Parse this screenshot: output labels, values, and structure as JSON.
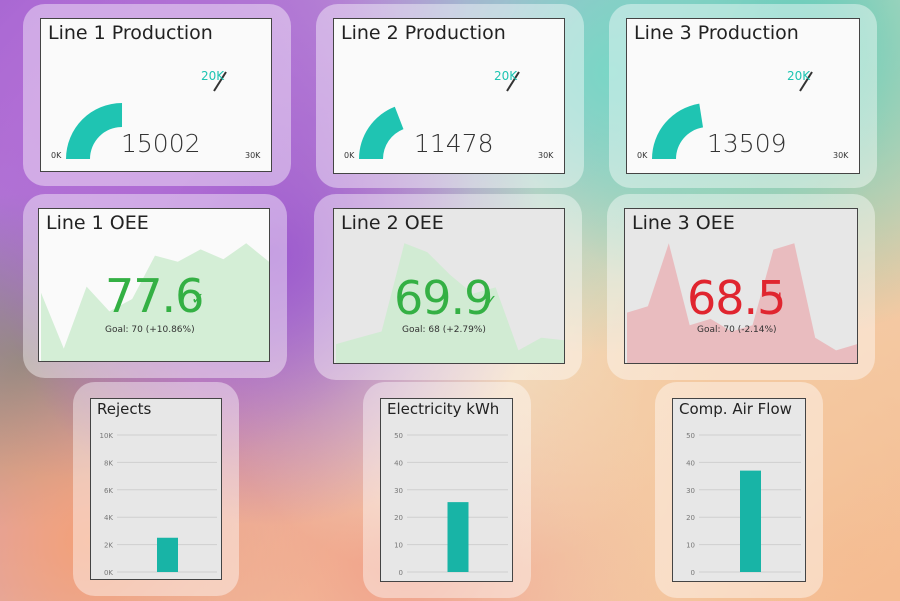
{
  "colors": {
    "teal": "#1fc4b2",
    "good": "#34b044",
    "bad": "#e0252f",
    "good_fill": "#cdebcf",
    "bad_fill": "#eab2b5",
    "bar": "#18b4a6"
  },
  "production": [
    {
      "title": "Line 1 Production",
      "value": "15002",
      "min": "0K",
      "max": "30K",
      "target": "20K",
      "fraction": 0.5001
    },
    {
      "title": "Line 2 Production",
      "value": "11478",
      "min": "0K",
      "max": "30K",
      "target": "20K",
      "fraction": 0.3826
    },
    {
      "title": "Line 3 Production",
      "value": "13509",
      "min": "0K",
      "max": "30K",
      "target": "20K",
      "fraction": 0.4503
    }
  ],
  "oee": [
    {
      "title": "Line 1 OEE",
      "value": "77.6",
      "goal": "Goal: 70 (+10.86%)",
      "status": "good",
      "indicator": "check-icon",
      "trend": [
        0.55,
        0.1,
        0.6,
        0.4,
        0.5,
        0.85,
        0.8,
        0.9,
        0.82,
        0.95,
        0.8
      ]
    },
    {
      "title": "Line 2 OEE",
      "value": "69.9",
      "goal": "Goal: 68 (+2.79%)",
      "status": "good",
      "indicator": "check-icon",
      "trend": [
        0.15,
        0.2,
        0.25,
        0.95,
        0.88,
        0.7,
        0.55,
        0.6,
        0.1,
        0.2,
        0.18
      ]
    },
    {
      "title": "Line 3 OEE",
      "value": "68.5",
      "goal": "Goal: 70 (-2.14%)",
      "status": "bad",
      "indicator": "exclamation-icon",
      "trend": [
        0.4,
        0.45,
        0.95,
        0.3,
        0.35,
        0.25,
        0.3,
        0.9,
        0.95,
        0.2,
        0.1,
        0.15
      ]
    }
  ],
  "bars": [
    {
      "title": "Rejects",
      "ticks": [
        "10K",
        "8K",
        "6K",
        "4K",
        "2K",
        "0K"
      ],
      "max": 10000,
      "value": 2500
    },
    {
      "title": "Electricity kWh",
      "ticks": [
        "50",
        "40",
        "30",
        "20",
        "10",
        "0"
      ],
      "max": 50,
      "value": 25.5
    },
    {
      "title": "Comp. Air Flow",
      "ticks": [
        "50",
        "40",
        "30",
        "20",
        "10",
        "0"
      ],
      "max": 50,
      "value": 37
    }
  ]
}
